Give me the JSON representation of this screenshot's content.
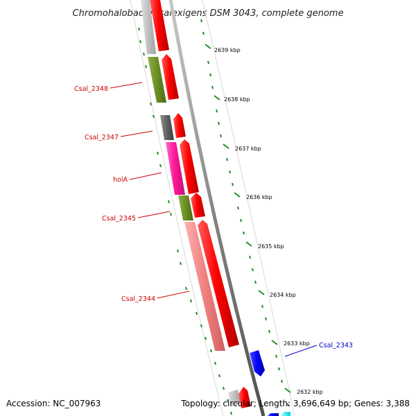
{
  "title": "Chromohalobacter salexigens DSM 3043, complete genome",
  "footer": {
    "accession": "Accession: NC_007963",
    "topology": "Topology: circular; Length: 3,696,649 bp; Genes: 3,388"
  },
  "colors": {
    "forward_cds": "#ff0000",
    "highlight_cds": "#0000ff",
    "label_red": "#cc0000",
    "label_blue": "#0000cc",
    "tick_green": "#228b22",
    "backbone": "#888888"
  },
  "kbp_markers": [
    {
      "label": "2639 kbp"
    },
    {
      "label": "2638 kbp"
    },
    {
      "label": "2637 kbp"
    },
    {
      "label": "2636 kbp"
    },
    {
      "label": "2635 kbp"
    },
    {
      "label": "2634 kbp"
    },
    {
      "label": "2633 kbp"
    },
    {
      "label": "2632 kbp"
    }
  ],
  "gene_labels": [
    {
      "name": "Csal_2348",
      "color": "#cc0000"
    },
    {
      "name": "Csal_2347",
      "color": "#cc0000"
    },
    {
      "name": "holA",
      "color": "#cc0000"
    },
    {
      "name": "Csal_2345",
      "color": "#cc0000"
    },
    {
      "name": "Csal_2344",
      "color": "#cc0000"
    },
    {
      "name": "Csal_2343",
      "color": "#0000cc"
    }
  ]
}
